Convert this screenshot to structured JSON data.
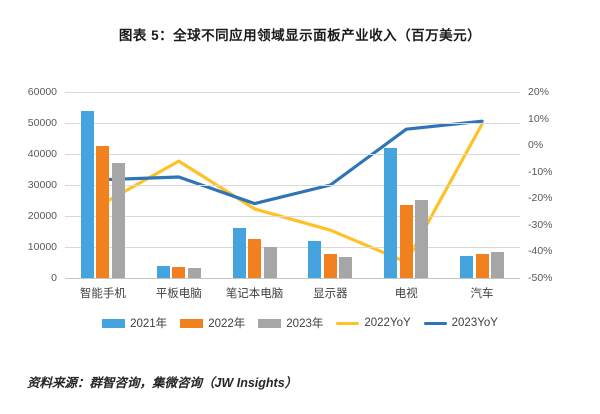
{
  "title": "图表 5：全球不同应用领域显示面板产业收入（百万美元）",
  "source_note": "资料来源：群智咨询，集微咨询（JW Insights）",
  "colors": {
    "bar_2021": "#45A3DE",
    "bar_2022": "#F1801E",
    "bar_2023": "#A6A6A6",
    "line_2022yoy": "#FFC226",
    "line_2023yoy": "#2E74B6",
    "gridline": "#D9D9D9",
    "axis_text": "#595959"
  },
  "chart_data": {
    "type": "bar",
    "subtype": "combo-bar-line-dual-axis",
    "title": "图表 5：全球不同应用领域显示面板产业收入（百万美元）",
    "categories": [
      "智能手机",
      "平板电脑",
      "笔记本电脑",
      "显示器",
      "电视",
      "汽车"
    ],
    "series": [
      {
        "name": "2021年",
        "type": "bar",
        "axis": "left",
        "color": "#45A3DE",
        "values": [
          54000,
          4000,
          16200,
          12000,
          42000,
          7100
        ]
      },
      {
        "name": "2022年",
        "type": "bar",
        "axis": "left",
        "color": "#F1801E",
        "values": [
          42500,
          3700,
          12500,
          7800,
          23600,
          7700
        ]
      },
      {
        "name": "2023年",
        "type": "bar",
        "axis": "left",
        "color": "#A6A6A6",
        "values": [
          37000,
          3200,
          10000,
          6700,
          25200,
          8300
        ]
      },
      {
        "name": "2022YoY",
        "type": "line",
        "axis": "right",
        "color": "#FFC226",
        "values": [
          -22,
          -6,
          -24,
          -32,
          -44,
          8
        ]
      },
      {
        "name": "2023YoY",
        "type": "line",
        "axis": "right",
        "color": "#2E74B6",
        "values": [
          -13,
          -12,
          -22,
          -15,
          6,
          9
        ]
      }
    ],
    "left_axis": {
      "min": 0,
      "max": 60000,
      "tick_step": 10000,
      "ticks": [
        "0",
        "10000",
        "20000",
        "30000",
        "40000",
        "50000",
        "60000"
      ]
    },
    "right_axis": {
      "min": -50,
      "max": 20,
      "tick_step": 10,
      "unit": "%",
      "ticks_top_down": [
        "20%",
        "10%",
        "0%",
        "-10%",
        "-20%",
        "-30%",
        "-40%",
        "-50%"
      ]
    },
    "grid": "horizontal",
    "legend_position": "bottom",
    "legend": [
      "2021年",
      "2022年",
      "2023年",
      "2022YoY",
      "2023YoY"
    ]
  }
}
